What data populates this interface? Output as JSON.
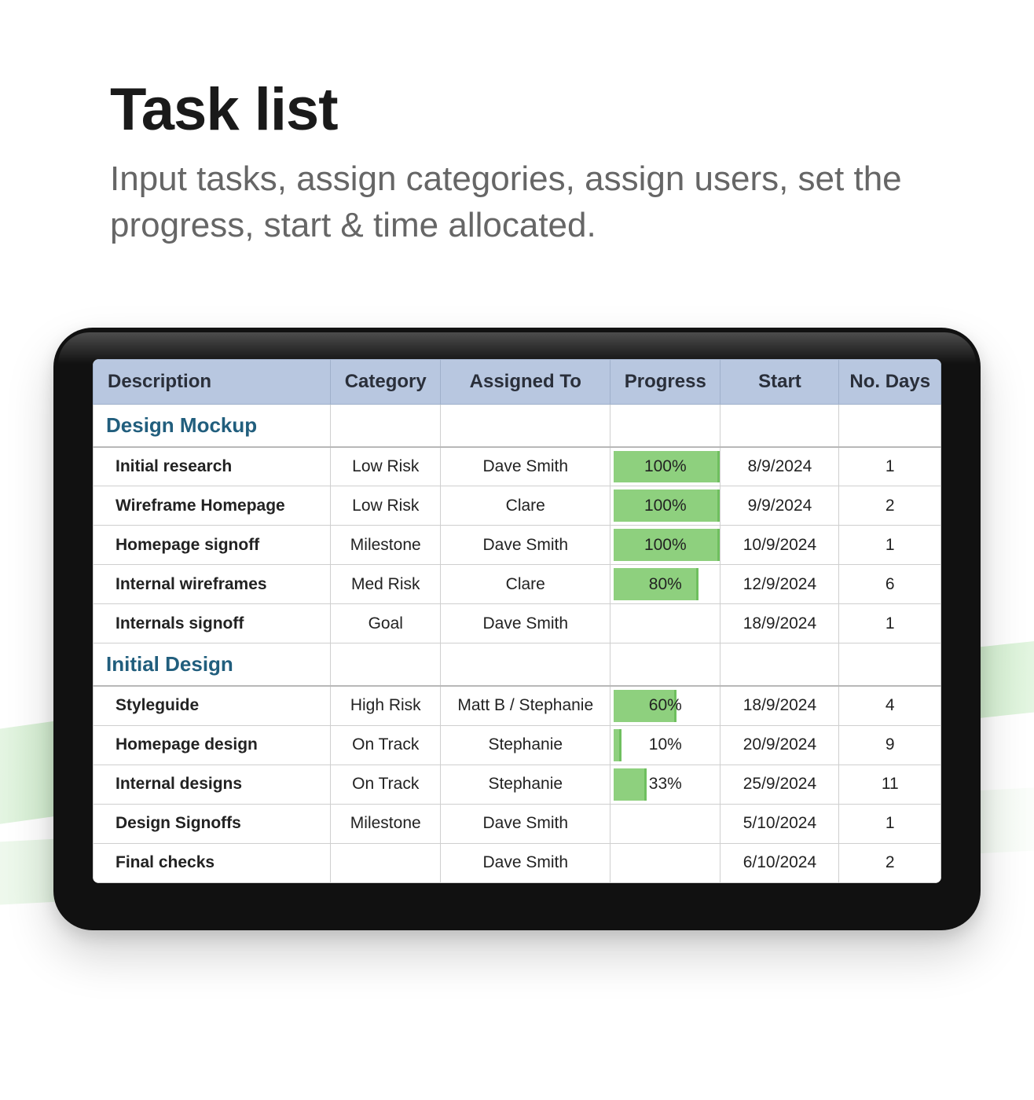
{
  "header": {
    "title": "Task list",
    "subtitle": "Input tasks, assign categories, assign users, set the progress, start & time allocated."
  },
  "colors": {
    "header_bg": "#b8c7e0",
    "section_title": "#215e7d",
    "progress_fill": "#8ed07e",
    "progress_edge": "#6fbf5f",
    "border": "#cfcfcf",
    "text": "#222222",
    "subtitle_text": "#666666",
    "tablet_shell": "#111111"
  },
  "table": {
    "columns": [
      "Description",
      "Category",
      "Assigned To",
      "Progress",
      "Start",
      "No. Days"
    ],
    "column_widths_pct": [
      28,
      13,
      20,
      13,
      14,
      12
    ],
    "sections": [
      {
        "title": "Design Mockup",
        "rows": [
          {
            "description": "Initial research",
            "category": "Low Risk",
            "assigned_to": "Dave Smith",
            "progress_pct": 100,
            "progress_label": "100%",
            "start": "8/9/2024",
            "days": "1"
          },
          {
            "description": "Wireframe Homepage",
            "category": "Low Risk",
            "assigned_to": "Clare",
            "progress_pct": 100,
            "progress_label": "100%",
            "start": "9/9/2024",
            "days": "2"
          },
          {
            "description": "Homepage signoff",
            "category": "Milestone",
            "assigned_to": "Dave Smith",
            "progress_pct": 100,
            "progress_label": "100%",
            "start": "10/9/2024",
            "days": "1"
          },
          {
            "description": "Internal wireframes",
            "category": "Med Risk",
            "assigned_to": "Clare",
            "progress_pct": 80,
            "progress_label": "80%",
            "start": "12/9/2024",
            "days": "6"
          },
          {
            "description": "Internals signoff",
            "category": "Goal",
            "assigned_to": "Dave Smith",
            "progress_pct": null,
            "progress_label": "",
            "start": "18/9/2024",
            "days": "1"
          }
        ]
      },
      {
        "title": "Initial Design",
        "rows": [
          {
            "description": "Styleguide",
            "category": "High Risk",
            "assigned_to": "Matt B / Stephanie",
            "progress_pct": 60,
            "progress_label": "60%",
            "start": "18/9/2024",
            "days": "4"
          },
          {
            "description": "Homepage design",
            "category": "On Track",
            "assigned_to": "Stephanie",
            "progress_pct": 10,
            "progress_label": "10%",
            "start": "20/9/2024",
            "days": "9"
          },
          {
            "description": "Internal designs",
            "category": "On Track",
            "assigned_to": "Stephanie",
            "progress_pct": 33,
            "progress_label": "33%",
            "start": "25/9/2024",
            "days": "11"
          },
          {
            "description": "Design Signoffs",
            "category": "Milestone",
            "assigned_to": "Dave Smith",
            "progress_pct": null,
            "progress_label": "",
            "start": "5/10/2024",
            "days": "1"
          },
          {
            "description": "Final checks",
            "category": "",
            "assigned_to": "Dave Smith",
            "progress_pct": null,
            "progress_label": "",
            "start": "6/10/2024",
            "days": "2"
          }
        ]
      }
    ]
  }
}
